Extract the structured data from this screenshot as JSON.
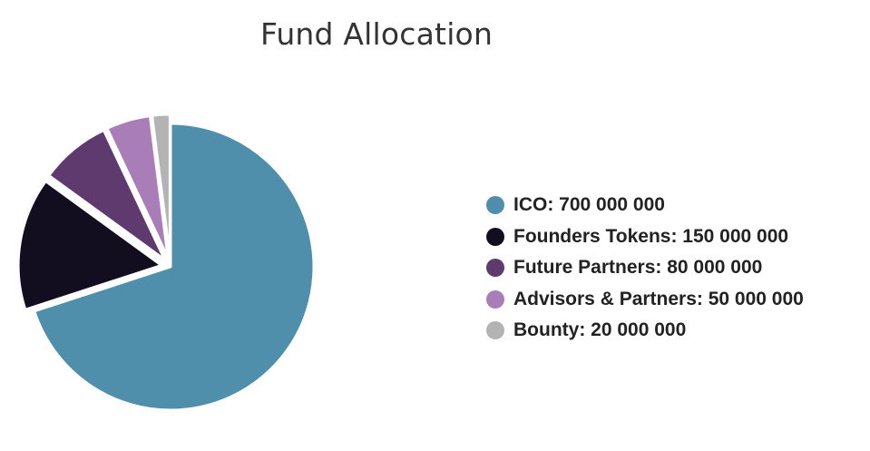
{
  "chart_data": {
    "type": "pie",
    "title": "Fund Allocation",
    "categories": [
      "ICO",
      "Founders Tokens",
      "Future Partners",
      "Advisors & Partners",
      "Bounty"
    ],
    "values": [
      700000000,
      150000000,
      80000000,
      50000000,
      20000000
    ],
    "colors": [
      "#4f8fab",
      "#120e1f",
      "#5e3a6e",
      "#a87db8",
      "#b3b3b3"
    ],
    "legend": {
      "position": "right",
      "labels": [
        "ICO: 700 000 000",
        "Founders Tokens: 150 000 000",
        "Future Partners: 80 000 000",
        "Advisors & Partners: 50 000 000",
        "Bounty: 20 000 000"
      ]
    },
    "exploded": "all slices except ICO"
  }
}
